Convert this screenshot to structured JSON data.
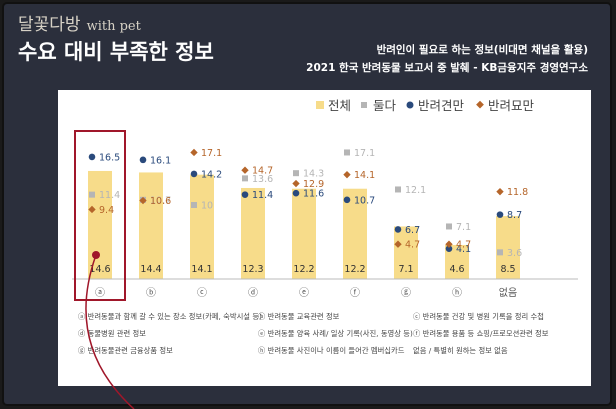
{
  "header": {
    "brand": "달꽃다방",
    "brand_sub": "with pet",
    "title": "수요 대비 부족한 정보",
    "source_line1": "반려인이 필요로 하는 정보(비대면 채널을 활용)",
    "source_line2": "2021 한국 반려동물 보고서 중 발췌 - KB금융지주 경영연구소"
  },
  "chart_data": {
    "type": "bar",
    "categories": [
      "ⓐ",
      "ⓑ",
      "ⓒ",
      "ⓓ",
      "ⓔ",
      "ⓕ",
      "ⓖ",
      "ⓗ",
      "없음"
    ],
    "series": [
      {
        "name": "전체",
        "values": [
          14.6,
          14.4,
          14.1,
          12.3,
          12.2,
          12.2,
          7.1,
          4.6,
          8.5
        ],
        "color": "#f7dc8a",
        "kind": "bar"
      },
      {
        "name": "둘다",
        "values": [
          11.4,
          10.7,
          10.0,
          13.6,
          14.3,
          17.1,
          12.1,
          7.1,
          3.6
        ],
        "color": "#b5b5b5",
        "kind": "square"
      },
      {
        "name": "반려견만",
        "values": [
          16.5,
          16.1,
          14.2,
          11.4,
          11.6,
          10.7,
          6.7,
          4.1,
          8.7
        ],
        "color": "#2a4a7c",
        "kind": "circle"
      },
      {
        "name": "반려묘만",
        "values": [
          9.4,
          10.6,
          17.1,
          14.7,
          12.9,
          14.1,
          4.7,
          4.7,
          11.8
        ],
        "color": "#b5652a",
        "kind": "diamond"
      }
    ],
    "footnotes": [
      "ⓐ 반려동물과 함께 갈 수 있는 장소 정보(카페, 숙박시설 등)",
      "ⓑ 반려동물 교육관련 정보",
      "ⓒ 반려동물 건강 및 병원 기록을 정리 수첩",
      "ⓓ 동물병원 관련 정보",
      "ⓔ 반려동물 양육 사례/ 일상 기록(사진, 동영상 등)",
      "ⓕ 반려동물 용품 등 쇼핑/프로모션관련 정보",
      "ⓖ 반려동물관련 금융상품 정보",
      "ⓗ 반려동물 사진이나 이름이 들어간 멤버십카드",
      "없음 / 특별히 원하는 정보 없음"
    ],
    "highlight_category": "ⓐ"
  },
  "colors": {
    "highlight": "#a0172a"
  }
}
